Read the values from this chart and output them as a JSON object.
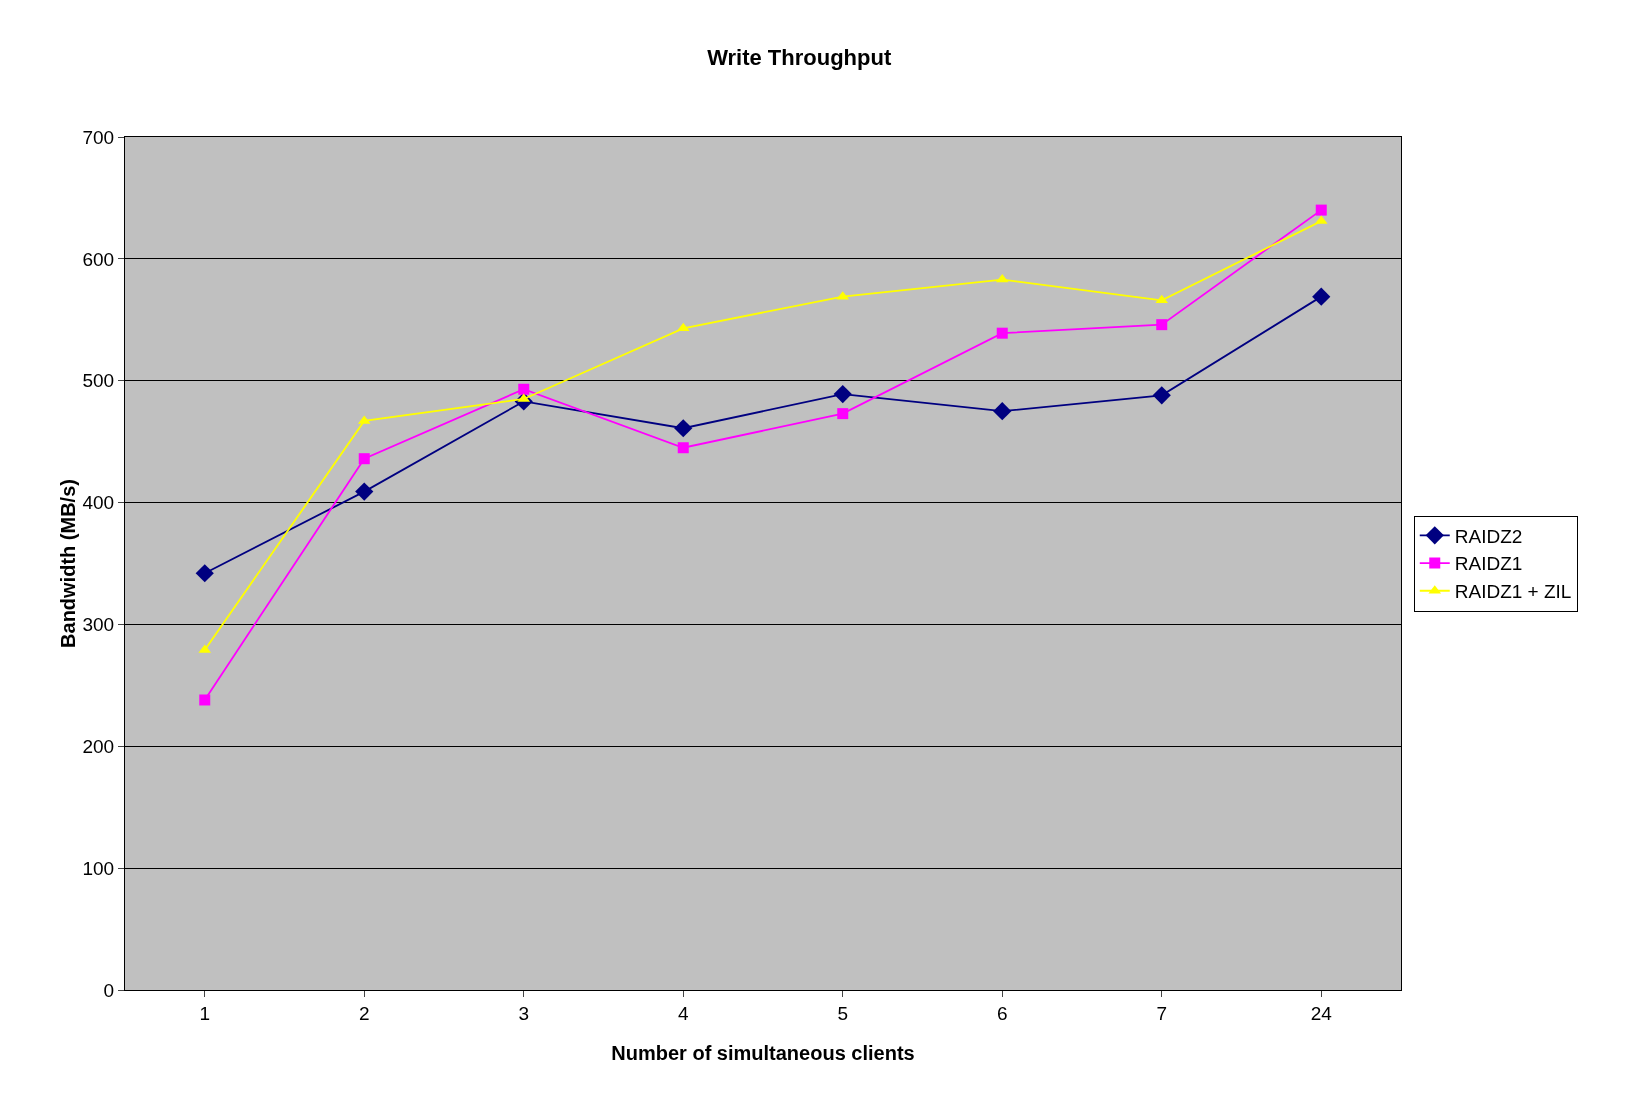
{
  "chart_data": {
    "type": "line",
    "title": "Write Throughput",
    "xlabel": "Number of simultaneous clients",
    "ylabel": "Bandwidth (MB/s)",
    "categories": [
      "1",
      "2",
      "3",
      "4",
      "5",
      "6",
      "7",
      "24"
    ],
    "series": [
      {
        "name": "RAIDZ2",
        "color": "#000080",
        "marker": "diamond",
        "values": [
          342,
          409,
          483,
          461,
          489,
          475,
          488,
          569
        ]
      },
      {
        "name": "RAIDZ1",
        "color": "#ff00ff",
        "marker": "square",
        "values": [
          238,
          436,
          493,
          445,
          473,
          539,
          546,
          640
        ]
      },
      {
        "name": "RAIDZ1 + ZIL",
        "color": "#ffff00",
        "marker": "triangle",
        "values": [
          279,
          467,
          485,
          543,
          569,
          583,
          566,
          631
        ]
      }
    ],
    "ylim": [
      0,
      700
    ],
    "yticks": [
      0,
      100,
      200,
      300,
      400,
      500,
      600,
      700
    ],
    "grid": "y",
    "legend": "right",
    "line_style": "solid"
  }
}
